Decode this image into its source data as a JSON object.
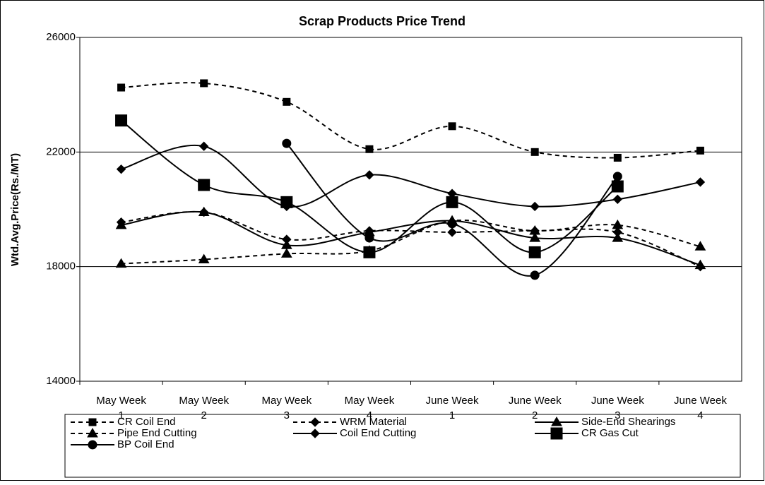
{
  "chart_data": {
    "type": "line",
    "title": "Scrap Products Price Trend",
    "y_label": "Wtd.Avg.Price(Rs./MT)",
    "categories": [
      [
        "May Week",
        "1"
      ],
      [
        "May Week",
        "2"
      ],
      [
        "May Week",
        "3"
      ],
      [
        "May Week",
        "4"
      ],
      [
        "June Week",
        "1"
      ],
      [
        "June Week",
        "2"
      ],
      [
        "June Week",
        "3"
      ],
      [
        "June Week",
        "4"
      ]
    ],
    "ylim": [
      14000,
      26000
    ],
    "yticks": [
      14000,
      18000,
      22000,
      26000
    ],
    "grid": true,
    "legend": "bottom",
    "series": [
      {
        "name": "CR Coil End",
        "color": "#000000",
        "dashed": true,
        "marker": "square",
        "values": [
          24250,
          24400,
          23750,
          22100,
          22900,
          22000,
          21800,
          22050
        ]
      },
      {
        "name": "WRM Material",
        "color": "#000000",
        "dashed": true,
        "marker": "diamond",
        "values": [
          19550,
          19900,
          18950,
          19250,
          19200,
          19250,
          19200,
          18000
        ]
      },
      {
        "name": "Side-End Shearings",
        "color": "#000000",
        "dashed": false,
        "marker": "triangle",
        "values": [
          19450,
          19900,
          18750,
          19200,
          19600,
          19000,
          19000,
          18050
        ]
      },
      {
        "name": "Pipe End Cutting",
        "color": "#000000",
        "dashed": true,
        "marker": "triangle",
        "values": [
          18100,
          18250,
          18450,
          18550,
          19600,
          19250,
          19450,
          18700
        ]
      },
      {
        "name": "Coil End Cutting",
        "color": "#000000",
        "dashed": false,
        "marker": "diamond",
        "values": [
          21400,
          22200,
          20100,
          21200,
          20550,
          20100,
          20350,
          20950
        ]
      },
      {
        "name": "CR Gas Cut",
        "color": "#000000",
        "dashed": false,
        "marker": "bigsquare",
        "values": [
          23100,
          20850,
          20250,
          18500,
          20250,
          18500,
          20800,
          null
        ]
      },
      {
        "name": "BP Coil End",
        "color": "#000000",
        "dashed": false,
        "marker": "circle",
        "values": [
          null,
          null,
          22300,
          19000,
          19500,
          17700,
          21150,
          null
        ]
      }
    ]
  }
}
